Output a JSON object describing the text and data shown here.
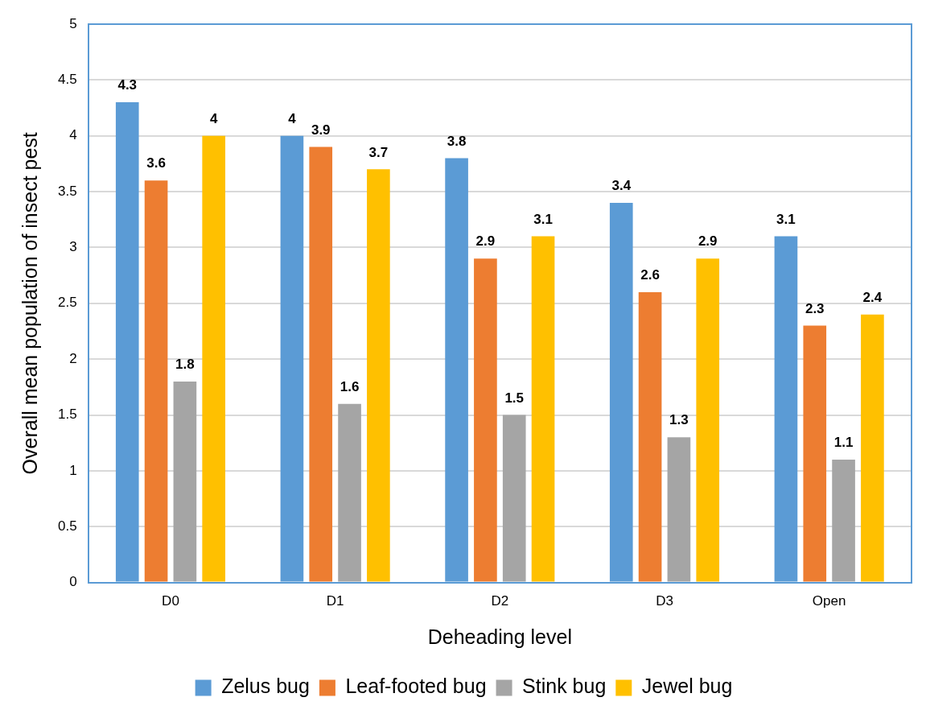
{
  "chart_data": {
    "type": "bar",
    "xlabel": "Deheading level",
    "ylabel": "Overall mean population of insect pest",
    "categories": [
      "D0",
      "D1",
      "D2",
      "D3",
      "Open"
    ],
    "series": [
      {
        "name": "Zelus bug",
        "color": "#5b9bd5",
        "values": [
          4.3,
          4,
          3.8,
          3.4,
          3.1
        ]
      },
      {
        "name": "Leaf-footed bug",
        "color": "#ed7d31",
        "values": [
          3.6,
          3.9,
          2.9,
          2.6,
          2.3
        ]
      },
      {
        "name": "Stink bug",
        "color": "#a5a5a5",
        "values": [
          1.8,
          1.6,
          1.5,
          1.3,
          1.1
        ]
      },
      {
        "name": "Jewel bug",
        "color": "#ffc000",
        "values": [
          4,
          3.7,
          3.1,
          2.9,
          2.4
        ]
      }
    ],
    "ylim": [
      0,
      5
    ],
    "yticks": [
      0,
      0.5,
      1,
      1.5,
      2,
      2.5,
      3,
      3.5,
      4,
      4.5,
      5
    ],
    "grid": "y",
    "legend": "bottom",
    "data_labels": true
  }
}
